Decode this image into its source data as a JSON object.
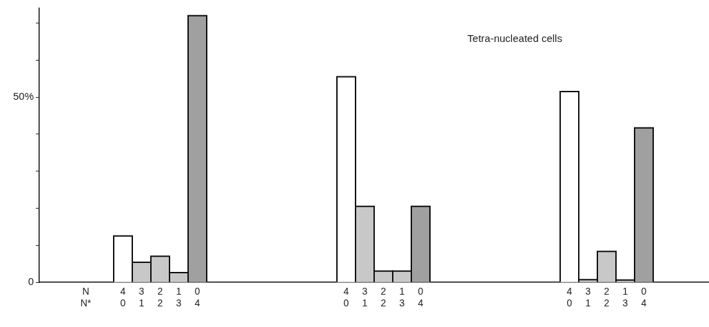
{
  "chart_data": {
    "type": "bar",
    "title": "Tetra-nucleated cells",
    "categories": [
      null,
      null,
      "N\nN*",
      null,
      "4\n0",
      "3\n1",
      "2\n2",
      "1\n3",
      "0\n4",
      null,
      null,
      null,
      null,
      null,
      null,
      null,
      "4\n0",
      "3\n1",
      "2\n2",
      "1\n3",
      "0\n4",
      null,
      null,
      null,
      null,
      null,
      null,
      null,
      "4\n0",
      "3\n1",
      "2\n2",
      "1\n3",
      "0\n4",
      null,
      null,
      null
    ],
    "values": [
      null,
      null,
      null,
      null,
      12.5,
      5.4,
      7.0,
      2.6,
      72,
      null,
      null,
      null,
      null,
      null,
      null,
      null,
      55.5,
      20.5,
      3.0,
      3.0,
      20.5,
      null,
      null,
      null,
      null,
      null,
      null,
      null,
      51.5,
      0.7,
      8.3,
      0.6,
      41.7,
      null,
      null,
      null
    ],
    "colors": [
      null,
      null,
      null,
      null,
      "#ffffff",
      "#c8c8c8",
      "#c8c8c8",
      "#c8c8c8",
      "#a0a0a0",
      null,
      null,
      null,
      null,
      null,
      null,
      null,
      "#ffffff",
      "#c8c8c8",
      "#c8c8c8",
      "#c8c8c8",
      "#a0a0a0",
      null,
      null,
      null,
      null,
      null,
      null,
      null,
      "#ffffff",
      "#c8c8c8",
      "#c8c8c8",
      "#c8c8c8",
      "#a0a0a0",
      null,
      null,
      null
    ],
    "ylim": [
      0,
      74
    ],
    "yticks": [
      0,
      {
        "value": 10,
        "label": null
      },
      {
        "value": 20,
        "label": null
      },
      {
        "value": 30,
        "label": null
      },
      {
        "value": 40,
        "label": null
      },
      {
        "value": 50,
        "label": "50%"
      },
      {
        "value": 60,
        "label": null
      },
      {
        "value": 70,
        "label": null
      }
    ],
    "grid": false
  }
}
